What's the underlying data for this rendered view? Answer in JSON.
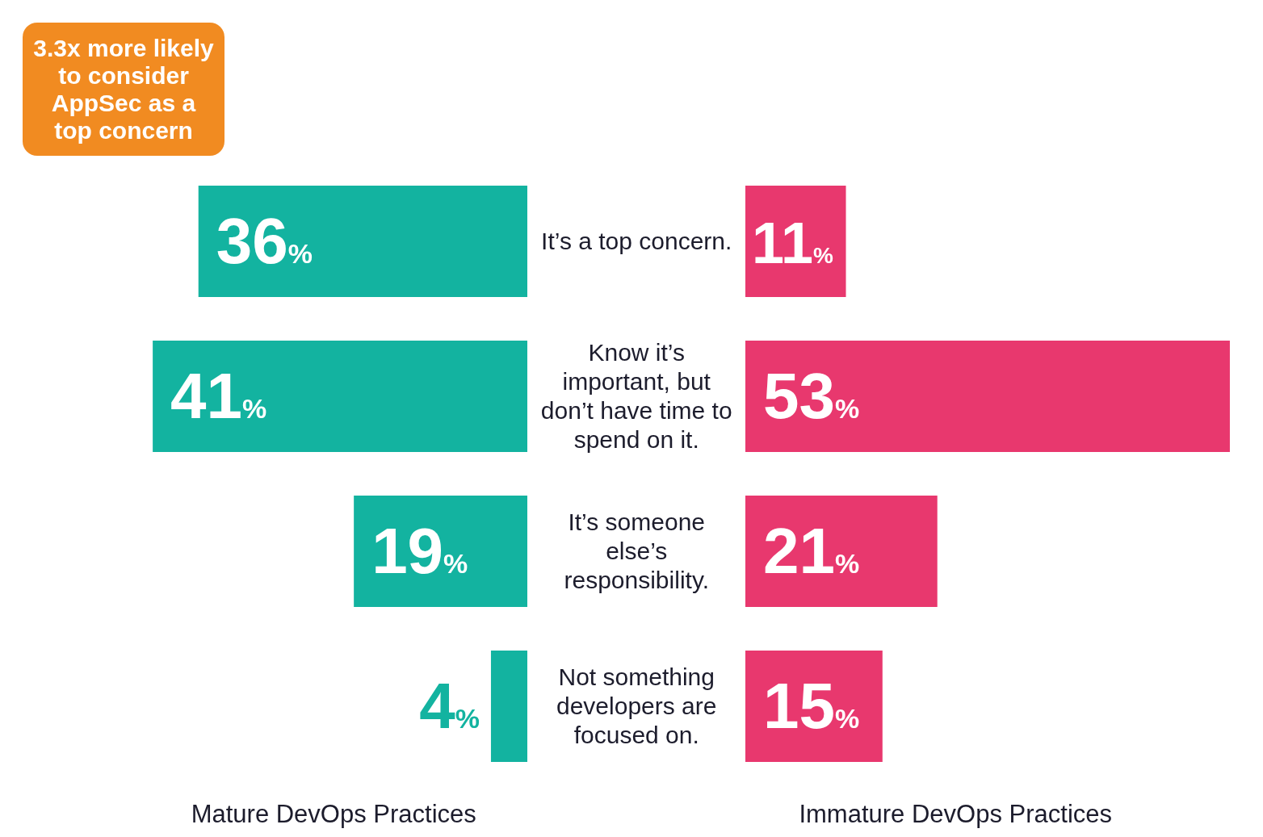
{
  "chart_data": [
    {
      "type": "bar",
      "orientation": "horizontal",
      "legend": false,
      "xlim": [
        57,
        0
      ],
      "tick_labels": "y",
      "categories": [
        "It’s a top concern.",
        "Know it’s important, but don’t have time to spend on it.",
        "It’s someone else’s responsibility.",
        "Not something developers are focused on."
      ],
      "values": [
        36,
        41,
        19,
        4
      ],
      "color": "#13b3a0",
      "value_labels": [
        "36%",
        "41%",
        "19%",
        "4%"
      ],
      "xlabel": "Mature DevOps Practices",
      "annotations": [
        "3.3x more likely to consider AppSec as a top concern"
      ]
    },
    {
      "type": "bar",
      "orientation": "horizontal",
      "legend": false,
      "xlim": [
        0,
        53
      ],
      "tick_labels": false,
      "categories": [
        null,
        null,
        null,
        null
      ],
      "values": [
        11,
        53,
        21,
        15
      ],
      "color": "#e8386e",
      "value_labels": [
        "11%",
        "53%",
        "21%",
        "15%"
      ],
      "xlabel": "Immature DevOps Practices"
    }
  ]
}
